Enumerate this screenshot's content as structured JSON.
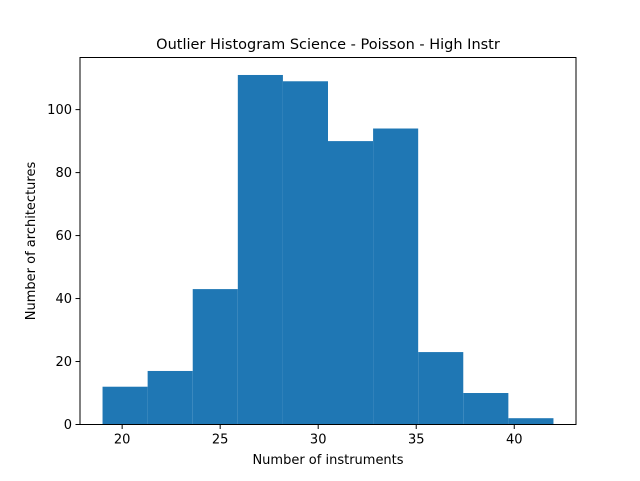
{
  "chart_data": {
    "type": "bar",
    "title": "Outlier Histogram Science - Poisson - High Instr",
    "xlabel": "Number of instruments",
    "ylabel": "Number of architectures",
    "bin_edges": [
      19,
      21.3,
      23.6,
      25.9,
      28.2,
      30.5,
      32.8,
      35.1,
      37.4,
      39.7,
      42
    ],
    "values": [
      12,
      17,
      43,
      111,
      109,
      90,
      94,
      23,
      10,
      2
    ],
    "xlim": [
      17.85,
      43.15
    ],
    "ylim": [
      0,
      116.55
    ],
    "xticks": [
      20,
      25,
      30,
      35,
      40
    ],
    "yticks": [
      0,
      20,
      40,
      60,
      80,
      100
    ],
    "bar_color": "#1f77b4",
    "grid": false
  }
}
